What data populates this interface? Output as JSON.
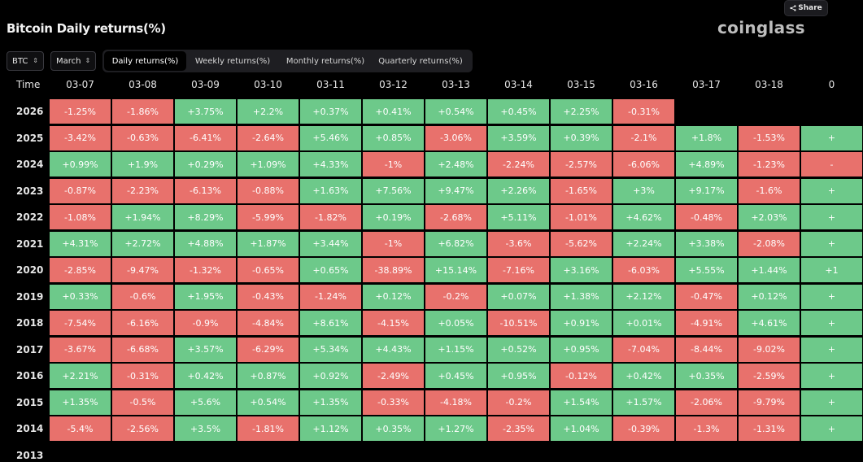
{
  "header": {
    "title": "Bitcoin Daily returns(%)",
    "logo": "coinglass",
    "share_label": "Share"
  },
  "controls": {
    "coin": "BTC",
    "month": "March",
    "tabs": [
      {
        "label": "Daily returns(%)",
        "active": true
      },
      {
        "label": "Weekly returns(%)",
        "active": false
      },
      {
        "label": "Monthly returns(%)",
        "active": false
      },
      {
        "label": "Quarterly returns(%)",
        "active": false
      }
    ]
  },
  "table": {
    "time_header": "Time",
    "dates": [
      "03-07",
      "03-08",
      "03-09",
      "03-10",
      "03-11",
      "03-12",
      "03-13",
      "03-14",
      "03-15",
      "03-16",
      "03-17",
      "03-18",
      "0"
    ],
    "rows": [
      {
        "year": "2026",
        "values": [
          "-1.25%",
          "-1.86%",
          "+3.75%",
          "+2.2%",
          "+0.37%",
          "+0.41%",
          "+0.54%",
          "+0.45%",
          "+2.25%",
          "-0.31%"
        ]
      },
      {
        "year": "2025",
        "values": [
          "-3.42%",
          "-0.63%",
          "-6.41%",
          "-2.64%",
          "+5.46%",
          "+0.85%",
          "-3.06%",
          "+3.59%",
          "+0.39%",
          "-2.1%",
          "+1.8%",
          "-1.53%",
          "+"
        ]
      },
      {
        "year": "2024",
        "values": [
          "+0.99%",
          "+1.9%",
          "+0.29%",
          "+1.09%",
          "+4.33%",
          "-1%",
          "+2.48%",
          "-2.24%",
          "-2.57%",
          "-6.06%",
          "+4.89%",
          "-1.23%",
          "-"
        ]
      },
      {
        "year": "2023",
        "values": [
          "-0.87%",
          "-2.23%",
          "-6.13%",
          "-0.88%",
          "+1.63%",
          "+7.56%",
          "+9.47%",
          "+2.26%",
          "-1.65%",
          "+3%",
          "+9.17%",
          "-1.6%",
          "+"
        ]
      },
      {
        "year": "2022",
        "values": [
          "-1.08%",
          "+1.94%",
          "+8.29%",
          "-5.99%",
          "-1.82%",
          "+0.19%",
          "-2.68%",
          "+5.11%",
          "-1.01%",
          "+4.62%",
          "-0.48%",
          "+2.03%",
          "+"
        ]
      },
      {
        "year": "2021",
        "values": [
          "+4.31%",
          "+2.72%",
          "+4.88%",
          "+1.87%",
          "+3.44%",
          "-1%",
          "+6.82%",
          "-3.6%",
          "-5.62%",
          "+2.24%",
          "+3.38%",
          "-2.08%",
          "+"
        ]
      },
      {
        "year": "2020",
        "values": [
          "-2.85%",
          "-9.47%",
          "-1.32%",
          "-0.65%",
          "+0.65%",
          "-38.89%",
          "+15.14%",
          "-7.16%",
          "+3.16%",
          "-6.03%",
          "+5.55%",
          "+1.44%",
          "+1"
        ]
      },
      {
        "year": "2019",
        "values": [
          "+0.33%",
          "-0.6%",
          "+1.95%",
          "-0.43%",
          "-1.24%",
          "+0.12%",
          "-0.2%",
          "+0.07%",
          "+1.38%",
          "+2.12%",
          "-0.47%",
          "+0.12%",
          "+"
        ]
      },
      {
        "year": "2018",
        "values": [
          "-7.54%",
          "-6.16%",
          "-0.9%",
          "-4.84%",
          "+8.61%",
          "-4.15%",
          "+0.05%",
          "-10.51%",
          "+0.91%",
          "+0.01%",
          "-4.91%",
          "+4.61%",
          "+"
        ]
      },
      {
        "year": "2017",
        "values": [
          "-3.67%",
          "-6.68%",
          "+3.57%",
          "-6.29%",
          "+5.34%",
          "+4.43%",
          "+1.15%",
          "+0.52%",
          "+0.95%",
          "-7.04%",
          "-8.44%",
          "-9.02%",
          "+"
        ]
      },
      {
        "year": "2016",
        "values": [
          "+2.21%",
          "-0.31%",
          "+0.42%",
          "+0.87%",
          "+0.92%",
          "-2.49%",
          "+0.45%",
          "+0.95%",
          "-0.12%",
          "+0.42%",
          "+0.35%",
          "-2.59%",
          "+"
        ]
      },
      {
        "year": "2015",
        "values": [
          "+1.35%",
          "-0.5%",
          "+5.6%",
          "+0.54%",
          "+1.35%",
          "-0.33%",
          "-4.18%",
          "-0.2%",
          "+1.54%",
          "+1.57%",
          "-2.06%",
          "-9.79%",
          "+"
        ]
      },
      {
        "year": "2014",
        "values": [
          "-5.4%",
          "-2.56%",
          "+3.5%",
          "-1.81%",
          "+1.12%",
          "+0.35%",
          "+1.27%",
          "-2.35%",
          "+1.04%",
          "-0.39%",
          "-1.3%",
          "-1.31%",
          "+"
        ]
      },
      {
        "year": "2013",
        "values": []
      }
    ]
  },
  "colors": {
    "positive": "#6dc98a",
    "negative": "#e8716c",
    "background": "#000000"
  }
}
